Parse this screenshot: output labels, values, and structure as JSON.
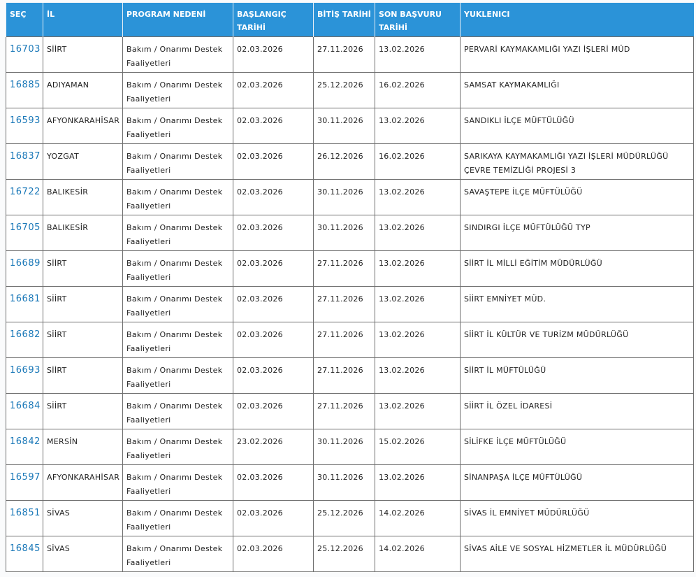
{
  "table": {
    "header": [
      "SEÇ",
      "İL",
      "PROGRAM NEDENİ",
      "BAŞLANGIÇ TARİHİ",
      "BİTİŞ TARİHİ",
      "SON BAŞVURU TARİHİ",
      "YUKLENICI"
    ],
    "rows": [
      [
        "16703",
        "SİİRT",
        "Bakım / Onarımı Destek Faaliyetleri",
        "02.03.2026",
        "27.11.2026",
        "13.02.2026",
        "PERVARİ KAYMAKAMLIĞI YAZI İŞLERİ MÜD"
      ],
      [
        "16885",
        "ADIYAMAN",
        "Bakım / Onarımı Destek Faaliyetleri",
        "02.03.2026",
        "25.12.2026",
        "16.02.2026",
        "SAMSAT KAYMAKAMLIĞI"
      ],
      [
        "16593",
        "AFYONKARAHİSAR",
        "Bakım / Onarımı Destek Faaliyetleri",
        "02.03.2026",
        "30.11.2026",
        "13.02.2026",
        "SANDIKLI İLÇE MÜFTÜLÜĞÜ"
      ],
      [
        "16837",
        "YOZGAT",
        "Bakım / Onarımı Destek Faaliyetleri",
        "02.03.2026",
        "26.12.2026",
        "16.02.2026",
        "SARIKAYA KAYMAKAMLIĞI YAZI İŞLERİ MÜDÜRLÜĞÜ ÇEVRE TEMİZLİĞİ PROJESİ 3"
      ],
      [
        "16722",
        "BALIKESİR",
        "Bakım / Onarımı Destek Faaliyetleri",
        "02.03.2026",
        "30.11.2026",
        "13.02.2026",
        "SAVAŞTEPE İLÇE MÜFTÜLÜĞÜ"
      ],
      [
        "16705",
        "BALIKESİR",
        "Bakım / Onarımı Destek Faaliyetleri",
        "02.03.2026",
        "30.11.2026",
        "13.02.2026",
        "SINDIRGI İLÇE MÜFTÜLÜĞÜ TYP"
      ],
      [
        "16689",
        "SİİRT",
        "Bakım / Onarımı Destek Faaliyetleri",
        "02.03.2026",
        "27.11.2026",
        "13.02.2026",
        "SİİRT İL MİLLİ EĞİTİM MÜDÜRLÜĞÜ"
      ],
      [
        "16681",
        "SİİRT",
        "Bakım / Onarımı Destek Faaliyetleri",
        "02.03.2026",
        "27.11.2026",
        "13.02.2026",
        "SİİRT EMNİYET MÜD."
      ],
      [
        "16682",
        "SİİRT",
        "Bakım / Onarımı Destek Faaliyetleri",
        "02.03.2026",
        "27.11.2026",
        "13.02.2026",
        "SİİRT İL KÜLTÜR VE TURİZM MÜDÜRLÜĞÜ"
      ],
      [
        "16693",
        "SİİRT",
        "Bakım / Onarımı Destek Faaliyetleri",
        "02.03.2026",
        "27.11.2026",
        "13.02.2026",
        "SİİRT İL MÜFTÜLÜĞÜ"
      ],
      [
        "16684",
        "SİİRT",
        "Bakım / Onarımı Destek Faaliyetleri",
        "02.03.2026",
        "27.11.2026",
        "13.02.2026",
        "SİİRT İL ÖZEL İDARESİ"
      ],
      [
        "16842",
        "MERSİN",
        "Bakım / Onarımı Destek Faaliyetleri",
        "23.02.2026",
        "30.11.2026",
        "15.02.2026",
        "SİLİFKE İLÇE MÜFTÜLÜĞÜ"
      ],
      [
        "16597",
        "AFYONKARAHİSAR",
        "Bakım / Onarımı Destek Faaliyetleri",
        "02.03.2026",
        "30.11.2026",
        "13.02.2026",
        "SİNANPAŞA İLÇE MÜFTÜLÜĞÜ"
      ],
      [
        "16851",
        "SİVAS",
        "Bakım / Onarımı Destek Faaliyetleri",
        "02.03.2026",
        "25.12.2026",
        "14.02.2026",
        "SİVAS İL EMNİYET MÜDÜRLÜĞÜ"
      ],
      [
        "16845",
        "SİVAS",
        "Bakım / Onarımı Destek Faaliyetleri",
        "02.03.2026",
        "25.12.2026",
        "14.02.2026",
        "SİVAS AİLE VE SOSYAL HİZMETLER İL MÜDÜRLÜĞÜ"
      ]
    ]
  }
}
